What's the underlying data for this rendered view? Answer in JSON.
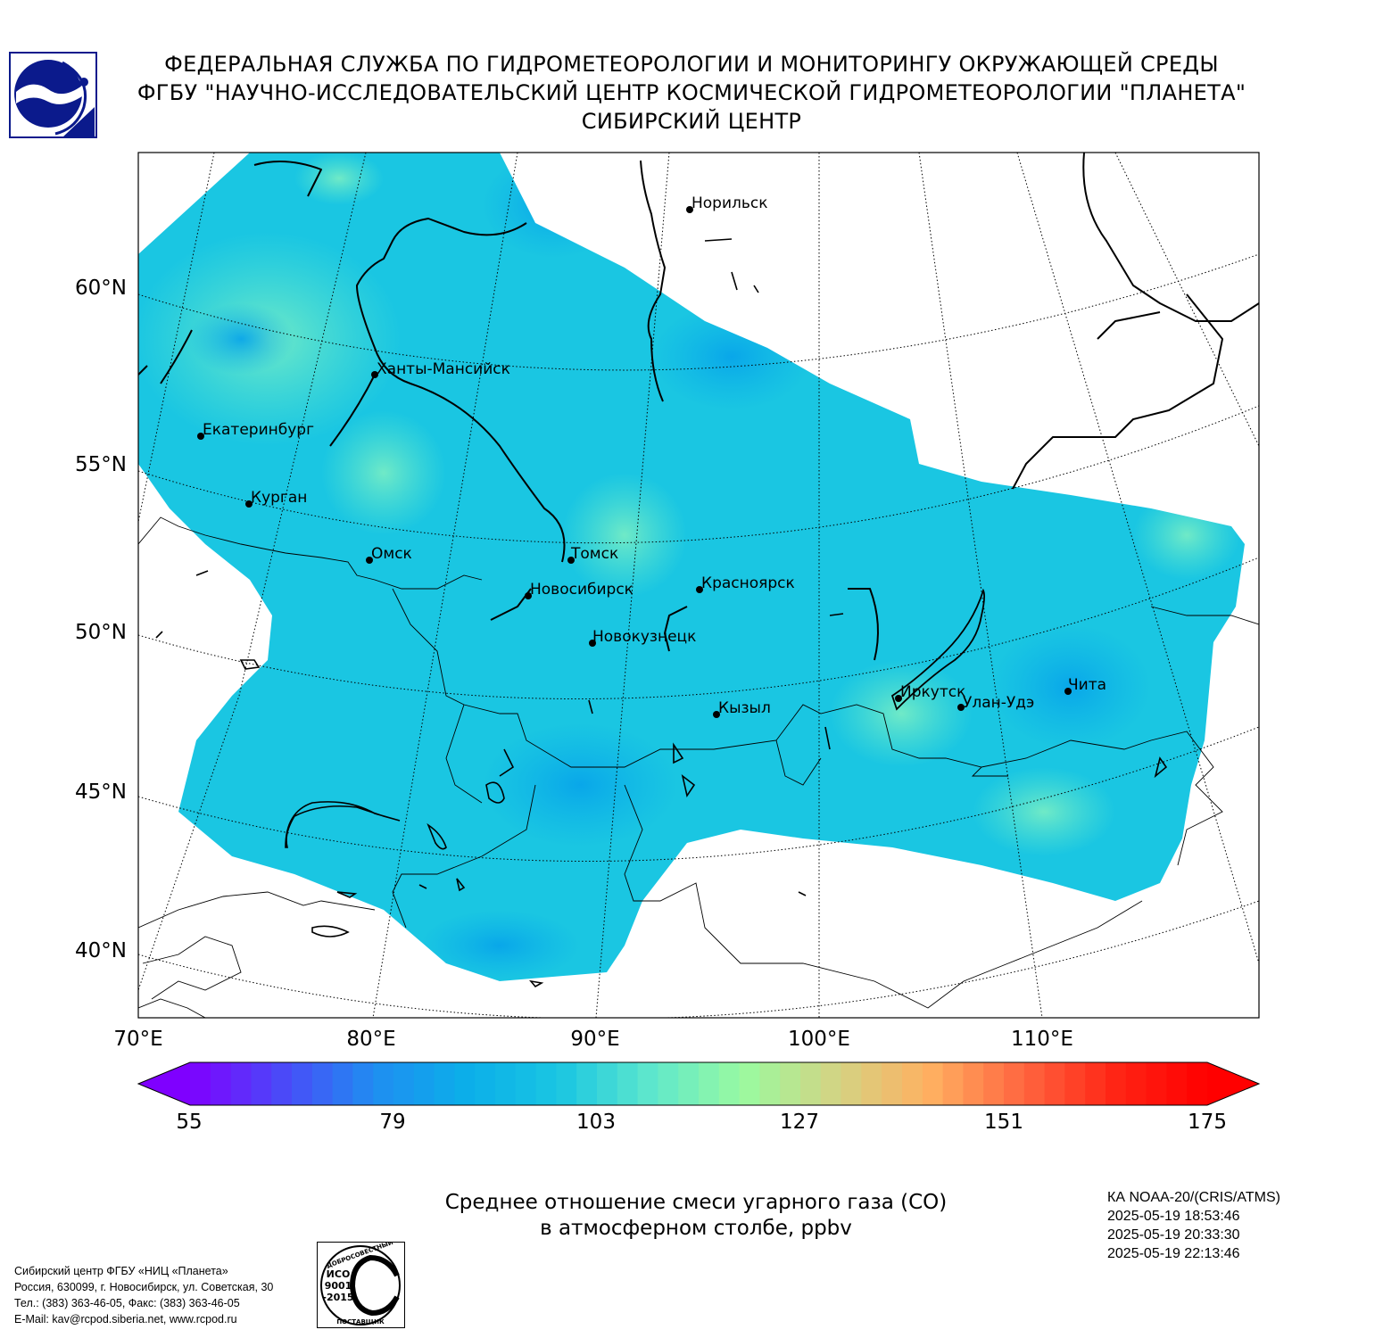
{
  "header": {
    "line1": "ФЕДЕРАЛЬНАЯ СЛУЖБА ПО ГИДРОМЕТЕОРОЛОГИИ И МОНИТОРИНГУ ОКРУЖАЮЩЕЙ СРЕДЫ",
    "line2": "ФГБУ \"НАУЧНО-ИССЛЕДОВАТЕЛЬСКИЙ ЦЕНТР КОСМИЧЕСКОЙ ГИДРОМЕТЕОРОЛОГИИ \"ПЛАНЕТА\"",
    "line3": "СИБИРСКИЙ ЦЕНТР"
  },
  "map": {
    "lat_labels": [
      "60°N",
      "55°N",
      "50°N",
      "45°N",
      "40°N"
    ],
    "lon_labels": [
      "70°E",
      "80°E",
      "90°E",
      "100°E",
      "110°E"
    ],
    "cities": [
      {
        "name": "Норильск"
      },
      {
        "name": "Ханты-Мансийск"
      },
      {
        "name": "Екатеринбург"
      },
      {
        "name": "Курган"
      },
      {
        "name": "Омск"
      },
      {
        "name": "Томск"
      },
      {
        "name": "Новосибирск"
      },
      {
        "name": "Красноярск"
      },
      {
        "name": "Новокузнецк"
      },
      {
        "name": "Кызыл"
      },
      {
        "name": "Иркутск"
      },
      {
        "name": "Улан-Удэ"
      },
      {
        "name": "Чита"
      }
    ],
    "colors": {
      "coverage_base": "#1ac6e2",
      "low": "#0bafe9",
      "high": "#5fe8cc"
    }
  },
  "colorbar": {
    "ticks": [
      "55",
      "79",
      "103",
      "127",
      "151",
      "175"
    ],
    "min": 55,
    "max": 175,
    "colors": [
      "#7f00ff",
      "#4a4af8",
      "#1f8ef1",
      "#0bafe9",
      "#1ac6e2",
      "#5fe8cc",
      "#9bfa9f",
      "#d4d383",
      "#ffb061",
      "#ff6640",
      "#ff2515",
      "#ff0000"
    ]
  },
  "title": {
    "line1": "Среднее отношение смеси угарного газа (CO)",
    "line2": "в атмосферном столбе, ppbv"
  },
  "satellite": {
    "name": "КА NOAA-20/(CRIS/ATMS)",
    "times": [
      "2025-05-19 18:53:46",
      "2025-05-19 20:33:30",
      "2025-05-19 22:13:46"
    ]
  },
  "footer": {
    "line1": "Сибирский центр ФГБУ «НИЦ «Планета»",
    "line2": "Россия, 630099, г. Новосибирск, ул. Советская, 30",
    "line3": "Тел.: (383) 363-46-05, Факс: (383) 363-46-05",
    "line4": "E-Mail: kav@rcpod.siberia.net, www.rcpod.ru"
  },
  "iso_badge": {
    "top": "ДОБРОСОВЕСТНЫЙ",
    "l1": "ИСО",
    "l2": "9001",
    "l3": "-2015",
    "bottom": "ПОСТАВЩИК"
  }
}
